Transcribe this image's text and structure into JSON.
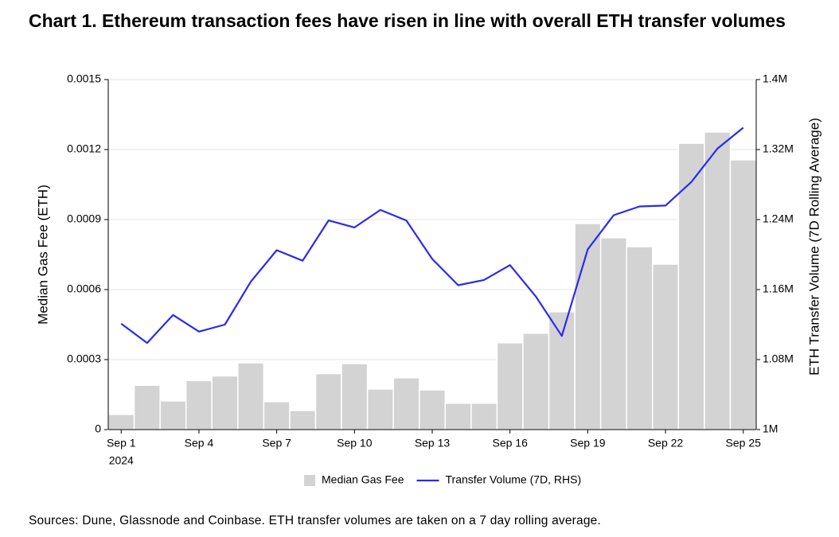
{
  "chart_data": {
    "type": "bar-line",
    "title": "Chart 1. Ethereum transaction fees have risen in line with overall ETH transfer volumes",
    "source": "Sources: Dune, Glassnode and Coinbase. ETH transfer volumes are taken on a 7 day rolling average.",
    "categories": [
      "Sep 1",
      null,
      null,
      "Sep 4",
      null,
      null,
      "Sep 7",
      null,
      null,
      "Sep 10",
      null,
      null,
      "Sep 13",
      null,
      null,
      "Sep 16",
      null,
      null,
      "Sep 19",
      null,
      null,
      "Sep 22",
      null,
      null,
      "Sep 25"
    ],
    "year_label": "2024",
    "y_label": "Median Gas Fee (ETH)",
    "y2_label": "ETH Transfer Volume (7D Rolling Average)",
    "ylim": [
      0,
      0.0015
    ],
    "yticks": [
      0,
      0.0003,
      0.0006,
      0.0009,
      0.0012,
      0.0015
    ],
    "y2lim": [
      1000000,
      1400000
    ],
    "y2ticks": [
      {
        "value": 1000000,
        "label": "1M"
      },
      {
        "value": 1080000,
        "label": "1.08M"
      },
      {
        "value": 1160000,
        "label": "1.16M"
      },
      {
        "value": 1240000,
        "label": "1.24M"
      },
      {
        "value": 1320000,
        "label": "1.32M"
      },
      {
        "value": 1400000,
        "label": "1.4M"
      }
    ],
    "grid": true,
    "legend": "bottom",
    "series": [
      {
        "name": "Median Gas Fee",
        "type": "bar",
        "color": "#d3d3d3",
        "values": [
          6.5e-05,
          0.00019,
          0.000123,
          0.00021,
          0.00023,
          0.000286,
          0.00012,
          8.2e-05,
          0.00024,
          0.000283,
          0.000174,
          0.000222,
          0.00017,
          0.000113,
          0.000113,
          0.000372,
          0.000413,
          0.000505,
          0.000883,
          0.000822,
          0.000784,
          0.000709,
          0.001227,
          0.001275,
          0.001156
        ]
      },
      {
        "name": "Transfer Volume (7D, RHS)",
        "type": "line",
        "axis": "y2",
        "color": "#2a2aef",
        "values": [
          1121000,
          1099000,
          1131000,
          1112000,
          1120000,
          1169000,
          1205000,
          1193000,
          1239000,
          1231000,
          1251000,
          1239000,
          1195000,
          1165000,
          1171000,
          1188000,
          1152000,
          1107000,
          1206000,
          1245000,
          1255000,
          1256000,
          1283000,
          1321000,
          1345000
        ]
      }
    ]
  }
}
